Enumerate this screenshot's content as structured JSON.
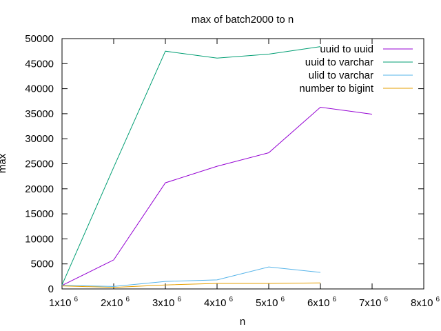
{
  "chart_data": {
    "type": "line",
    "title": "max of batch2000 to n",
    "xlabel": "n",
    "ylabel": "max",
    "xlim": [
      1000000,
      8000000
    ],
    "ylim": [
      0,
      50000
    ],
    "x_ticks": [
      {
        "value": 1000000,
        "mantissa": "1x10",
        "exponent": "6"
      },
      {
        "value": 2000000,
        "mantissa": "2x10",
        "exponent": "6"
      },
      {
        "value": 3000000,
        "mantissa": "3x10",
        "exponent": "6"
      },
      {
        "value": 4000000,
        "mantissa": "4x10",
        "exponent": "6"
      },
      {
        "value": 5000000,
        "mantissa": "5x10",
        "exponent": "6"
      },
      {
        "value": 6000000,
        "mantissa": "6x10",
        "exponent": "6"
      },
      {
        "value": 7000000,
        "mantissa": "7x10",
        "exponent": "6"
      },
      {
        "value": 8000000,
        "mantissa": "8x10",
        "exponent": "6"
      }
    ],
    "y_ticks": [
      0,
      5000,
      10000,
      15000,
      20000,
      25000,
      30000,
      35000,
      40000,
      45000,
      50000
    ],
    "grid": false,
    "legend_position": "top-right",
    "series": [
      {
        "name": "uuid to uuid",
        "color": "#9400d3",
        "x": [
          1000000,
          2000000,
          3000000,
          4000000,
          5000000,
          6000000,
          7000000
        ],
        "y": [
          700,
          5800,
          21200,
          24500,
          27200,
          36300,
          34900
        ]
      },
      {
        "name": "uuid to varchar",
        "color": "#009e73",
        "x": [
          1000000,
          2000000,
          3000000,
          4000000,
          5000000,
          6000000
        ],
        "y": [
          800,
          24300,
          47500,
          46100,
          46900,
          48400
        ]
      },
      {
        "name": "ulid to varchar",
        "color": "#56b4e9",
        "x": [
          1000000,
          2000000,
          3000000,
          4000000,
          5000000,
          6000000
        ],
        "y": [
          700,
          500,
          1500,
          1800,
          4400,
          3300
        ]
      },
      {
        "name": "number to bigint",
        "color": "#e69f00",
        "x": [
          1000000,
          2000000,
          3000000,
          4000000,
          5000000,
          6000000
        ],
        "y": [
          600,
          300,
          800,
          1100,
          1100,
          1200
        ]
      }
    ]
  }
}
